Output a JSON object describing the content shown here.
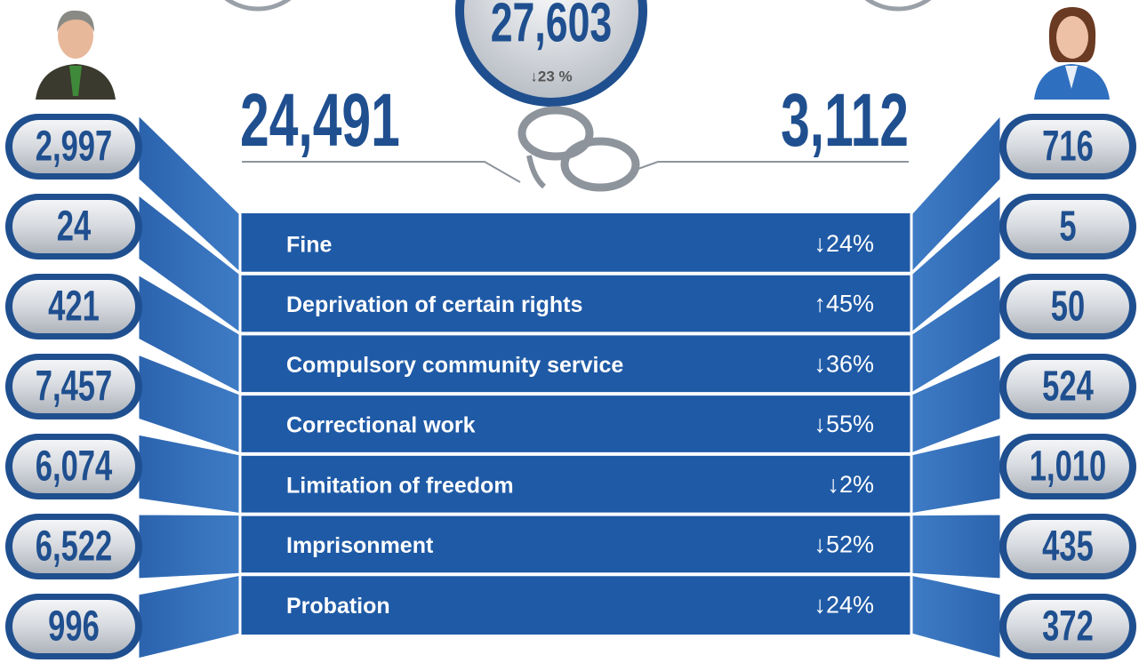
{
  "header": {
    "total": "27,603",
    "total_change": "↓23 %",
    "men_total": "24,491",
    "women_total": "3,112"
  },
  "rows": [
    {
      "label": "Fine",
      "change": "↓24%",
      "men": "2,997",
      "women": "716"
    },
    {
      "label": "Deprivation of certain rights",
      "change": "↑45%",
      "men": "24",
      "women": "5"
    },
    {
      "label": "Compulsory community service",
      "change": "↓36%",
      "men": "421",
      "women": "50"
    },
    {
      "label": "Correctional work",
      "change": "↓55%",
      "men": "7,457",
      "women": "524"
    },
    {
      "label": "Limitation of freedom",
      "change": "↓2%",
      "men": "6,074",
      "women": "1,010"
    },
    {
      "label": "Imprisonment",
      "change": "↓52%",
      "men": "6,522",
      "women": "435"
    },
    {
      "label": "Probation",
      "change": "↓24%",
      "men": "996",
      "women": "372"
    }
  ]
}
